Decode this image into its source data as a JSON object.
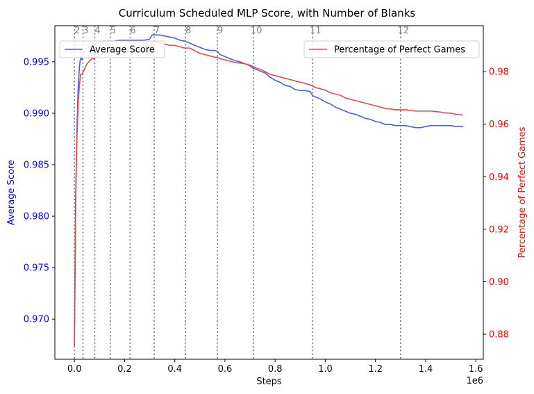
{
  "chart_data": {
    "type": "line",
    "title": "Curriculum Scheduled MLP Score, with Number of Blanks",
    "xlabel": "Steps",
    "x_offset_label": "1e6",
    "ylabel_left": "Average Score",
    "ylabel_right": "Percentage of Perfect Games",
    "xlim": [
      -0.078,
      1.63
    ],
    "ylim_left": [
      0.9661,
      0.9985
    ],
    "ylim_right": [
      0.8705,
      0.9975
    ],
    "x_ticks": [
      0.0,
      0.2,
      0.4,
      0.6,
      0.8,
      1.0,
      1.2,
      1.4,
      1.6
    ],
    "x_tick_labels": [
      "0.0",
      "0.2",
      "0.4",
      "0.6",
      "0.8",
      "1.0",
      "1.2",
      "1.4",
      "1.6"
    ],
    "y_left_ticks": [
      0.97,
      0.975,
      0.98,
      0.985,
      0.99,
      0.995
    ],
    "y_left_tick_labels": [
      "0.970",
      "0.975",
      "0.980",
      "0.985",
      "0.990",
      "0.995"
    ],
    "y_right_ticks": [
      0.88,
      0.9,
      0.92,
      0.94,
      0.96,
      0.98
    ],
    "y_right_tick_labels": [
      "0.88",
      "0.90",
      "0.92",
      "0.94",
      "0.96",
      "0.98"
    ],
    "colors": {
      "left_axis": "#0000ff",
      "right_axis": "#ff0000",
      "average_line": "#4a5fd8",
      "perfect_line": "#e8474c",
      "vlines": "#707070",
      "vline_labels": "#808080"
    },
    "curriculum_lines": [
      {
        "x": 0.0,
        "label": "2"
      },
      {
        "x": 0.034,
        "label": "3"
      },
      {
        "x": 0.081,
        "label": "4"
      },
      {
        "x": 0.143,
        "label": "5"
      },
      {
        "x": 0.222,
        "label": "6"
      },
      {
        "x": 0.318,
        "label": "7"
      },
      {
        "x": 0.443,
        "label": "8"
      },
      {
        "x": 0.57,
        "label": "9"
      },
      {
        "x": 0.714,
        "label": "10"
      },
      {
        "x": 0.95,
        "label": "11"
      },
      {
        "x": 1.3,
        "label": "12"
      }
    ],
    "series": [
      {
        "name": "Average Score",
        "axis": "left",
        "x": [
          0.0,
          0.005,
          0.01,
          0.015,
          0.02,
          0.025,
          0.03,
          0.035,
          0.04,
          0.05,
          0.06,
          0.07,
          0.08,
          0.09,
          0.1,
          0.12,
          0.14,
          0.16,
          0.18,
          0.2,
          0.22,
          0.24,
          0.26,
          0.28,
          0.3,
          0.31,
          0.32,
          0.34,
          0.36,
          0.38,
          0.4,
          0.42,
          0.44,
          0.46,
          0.48,
          0.5,
          0.52,
          0.54,
          0.56,
          0.57,
          0.58,
          0.6,
          0.62,
          0.64,
          0.66,
          0.68,
          0.7,
          0.71,
          0.72,
          0.74,
          0.76,
          0.78,
          0.8,
          0.82,
          0.84,
          0.86,
          0.88,
          0.9,
          0.92,
          0.94,
          0.95,
          0.96,
          0.98,
          1.0,
          1.02,
          1.04,
          1.06,
          1.08,
          1.1,
          1.12,
          1.14,
          1.16,
          1.18,
          1.2,
          1.22,
          1.24,
          1.26,
          1.28,
          1.3,
          1.32,
          1.34,
          1.36,
          1.38,
          1.4,
          1.42,
          1.44,
          1.46,
          1.48,
          1.5,
          1.52,
          1.54,
          1.55
        ],
        "values": [
          0.9674,
          0.982,
          0.9885,
          0.9925,
          0.9945,
          0.9955,
          0.9952,
          0.9957,
          0.996,
          0.9963,
          0.9965,
          0.9968,
          0.9967,
          0.9968,
          0.9969,
          0.997,
          0.997,
          0.997,
          0.9971,
          0.9971,
          0.9971,
          0.9971,
          0.9971,
          0.9971,
          0.9972,
          0.9976,
          0.9976,
          0.9976,
          0.9975,
          0.9974,
          0.9973,
          0.9971,
          0.997,
          0.9968,
          0.9966,
          0.9964,
          0.9962,
          0.9961,
          0.9961,
          0.996,
          0.9957,
          0.9955,
          0.9953,
          0.9951,
          0.995,
          0.9948,
          0.9946,
          0.9944,
          0.9943,
          0.9941,
          0.9939,
          0.9935,
          0.9932,
          0.993,
          0.9927,
          0.9926,
          0.9923,
          0.9922,
          0.9922,
          0.9921,
          0.9917,
          0.9916,
          0.9914,
          0.9911,
          0.9909,
          0.9906,
          0.9904,
          0.9902,
          0.99,
          0.9899,
          0.9897,
          0.9895,
          0.9894,
          0.9892,
          0.9891,
          0.9889,
          0.9889,
          0.9888,
          0.9888,
          0.9888,
          0.9887,
          0.9886,
          0.9886,
          0.9887,
          0.9888,
          0.9888,
          0.9888,
          0.9888,
          0.9888,
          0.9887,
          0.9887,
          0.9887
        ]
      },
      {
        "name": "Percentage of Perfect Games",
        "axis": "right",
        "x": [
          0.0,
          0.005,
          0.01,
          0.015,
          0.02,
          0.025,
          0.03,
          0.035,
          0.04,
          0.05,
          0.06,
          0.07,
          0.08,
          0.09,
          0.1,
          0.12,
          0.14,
          0.16,
          0.18,
          0.2,
          0.22,
          0.24,
          0.26,
          0.28,
          0.3,
          0.31,
          0.32,
          0.34,
          0.36,
          0.38,
          0.4,
          0.42,
          0.44,
          0.46,
          0.48,
          0.5,
          0.52,
          0.54,
          0.56,
          0.57,
          0.58,
          0.6,
          0.62,
          0.64,
          0.66,
          0.68,
          0.7,
          0.71,
          0.72,
          0.74,
          0.76,
          0.78,
          0.8,
          0.82,
          0.84,
          0.86,
          0.88,
          0.9,
          0.92,
          0.94,
          0.95,
          0.96,
          0.98,
          1.0,
          1.02,
          1.04,
          1.06,
          1.08,
          1.1,
          1.12,
          1.14,
          1.16,
          1.18,
          1.2,
          1.22,
          1.24,
          1.26,
          1.28,
          1.3,
          1.32,
          1.34,
          1.36,
          1.38,
          1.4,
          1.42,
          1.44,
          1.46,
          1.48,
          1.5,
          1.52,
          1.54,
          1.55
        ],
        "values": [
          0.876,
          0.93,
          0.955,
          0.968,
          0.975,
          0.979,
          0.979,
          0.98,
          0.981,
          0.983,
          0.984,
          0.985,
          0.985,
          0.986,
          0.986,
          0.987,
          0.9875,
          0.9875,
          0.988,
          0.988,
          0.988,
          0.988,
          0.988,
          0.988,
          0.988,
          0.9915,
          0.9915,
          0.991,
          0.9905,
          0.99,
          0.99,
          0.9895,
          0.989,
          0.989,
          0.988,
          0.987,
          0.9865,
          0.986,
          0.9855,
          0.9855,
          0.985,
          0.9845,
          0.984,
          0.9835,
          0.9833,
          0.983,
          0.9825,
          0.982,
          0.9815,
          0.981,
          0.98,
          0.979,
          0.9785,
          0.978,
          0.9775,
          0.977,
          0.9765,
          0.976,
          0.9755,
          0.975,
          0.9745,
          0.974,
          0.9735,
          0.973,
          0.972,
          0.9715,
          0.971,
          0.97,
          0.9695,
          0.969,
          0.9685,
          0.968,
          0.9675,
          0.967,
          0.9665,
          0.966,
          0.9658,
          0.9655,
          0.9655,
          0.9655,
          0.9652,
          0.965,
          0.965,
          0.965,
          0.965,
          0.9648,
          0.9646,
          0.9643,
          0.9642,
          0.9638,
          0.9636,
          0.9635
        ]
      }
    ],
    "legends": {
      "left_placement": "upper-left",
      "right_placement": "upper-right"
    },
    "grid": false
  }
}
